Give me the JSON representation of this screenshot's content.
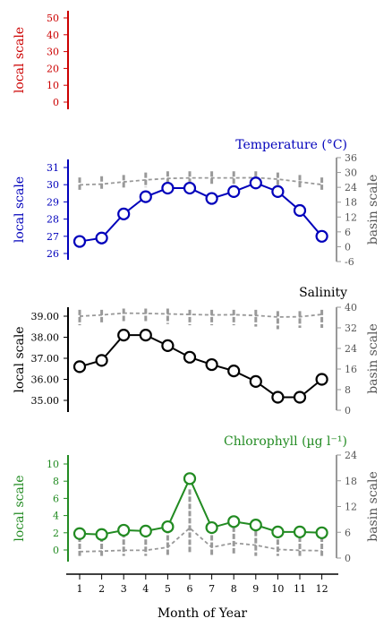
{
  "chart_data": {
    "type": "line",
    "x": [
      1,
      2,
      3,
      4,
      5,
      6,
      7,
      8,
      9,
      10,
      11,
      12
    ],
    "xlabel": "Month of Year",
    "left_axis_label": "local scale",
    "right_axis_label": "basin scale",
    "panels": [
      {
        "id": "empty",
        "title": "",
        "color": "#cc0000",
        "left_ylim": [
          -2,
          55
        ],
        "left_ticks": [
          "50",
          "40",
          "30",
          "20",
          "10",
          "0"
        ],
        "left_tick_values": [
          50,
          40,
          30,
          20,
          10,
          0
        ],
        "local_values": [],
        "right_ylim": null,
        "right_ticks": [],
        "right_tick_values": [],
        "basin_mean": [],
        "basin_ranges": []
      },
      {
        "id": "temperature",
        "title": "Temperature (°C)",
        "color": "#0000bb",
        "left_ylim": [
          25.6,
          31.4
        ],
        "left_ticks": [
          "31",
          "30",
          "29",
          "28",
          "27",
          "26"
        ],
        "left_tick_values": [
          31,
          30,
          29,
          28,
          27,
          26
        ],
        "local_values": [
          26.7,
          26.9,
          28.3,
          29.3,
          29.8,
          29.8,
          29.2,
          29.6,
          30.1,
          29.6,
          28.5,
          27.0
        ],
        "right_ylim": [
          -7,
          37
        ],
        "right_ticks": [
          "36",
          "30",
          "24",
          "18",
          "12",
          "6",
          "0",
          "-6"
        ],
        "right_tick_values": [
          36,
          30,
          24,
          18,
          12,
          6,
          0,
          -6
        ],
        "basin_mean": [
          25.0,
          25.3,
          26.2,
          27.0,
          27.6,
          27.8,
          27.8,
          27.8,
          27.9,
          27.3,
          26.2,
          25.1
        ],
        "basin_ranges": [
          [
            23.0,
            28.0
          ],
          [
            23.0,
            28.5
          ],
          [
            23.5,
            29.0
          ],
          [
            24.0,
            30.0
          ],
          [
            24.5,
            30.5
          ],
          [
            25.0,
            30.5
          ],
          [
            25.0,
            30.5
          ],
          [
            25.0,
            30.5
          ],
          [
            25.0,
            30.5
          ],
          [
            24.5,
            30.0
          ],
          [
            24.0,
            29.0
          ],
          [
            23.0,
            28.0
          ]
        ]
      },
      {
        "id": "salinity",
        "title": "Salinity",
        "color": "#000000",
        "left_ylim": [
          34.5,
          39.3
        ],
        "left_ticks": [
          "39.00",
          "38.00",
          "37.00",
          "36.00",
          "35.00"
        ],
        "left_tick_values": [
          39,
          38,
          37,
          36,
          35
        ],
        "local_values": [
          36.6,
          36.9,
          38.1,
          38.1,
          37.6,
          37.05,
          36.7,
          36.4,
          35.9,
          35.15,
          35.15,
          36.0
        ],
        "right_ylim": [
          0,
          40
        ],
        "right_ticks": [
          "40",
          "32",
          "24",
          "16",
          "8",
          "0"
        ],
        "right_tick_values": [
          40,
          32,
          24,
          16,
          8,
          0
        ],
        "basin_mean": [
          36.5,
          37.0,
          37.7,
          37.6,
          37.4,
          37.2,
          37.0,
          37.1,
          36.8,
          36.2,
          36.3,
          37.2
        ],
        "basin_ranges": [
          [
            33.0,
            39.0
          ],
          [
            33.5,
            39.0
          ],
          [
            34.0,
            39.5
          ],
          [
            34.0,
            39.5
          ],
          [
            33.5,
            39.5
          ],
          [
            33.0,
            39.0
          ],
          [
            33.0,
            39.0
          ],
          [
            33.0,
            39.0
          ],
          [
            32.5,
            39.0
          ],
          [
            31.5,
            38.5
          ],
          [
            32.0,
            38.5
          ],
          [
            32.0,
            39.0
          ]
        ]
      },
      {
        "id": "chlorophyll",
        "title": "Chlorophyll (µg l⁻¹)",
        "color": "#228b22",
        "left_ylim": [
          -1,
          11
        ],
        "left_ticks": [
          "10",
          "8",
          "6",
          "4",
          "2",
          "0"
        ],
        "left_tick_values": [
          10,
          8,
          6,
          4,
          2,
          0
        ],
        "local_values": [
          1.9,
          1.8,
          2.3,
          2.2,
          2.7,
          8.3,
          2.6,
          3.3,
          2.9,
          2.1,
          2.1,
          2.0
        ],
        "right_ylim": [
          0,
          24
        ],
        "right_ticks": [
          "24",
          "18",
          "12",
          "6",
          "0"
        ],
        "right_tick_values": [
          24,
          18,
          12,
          6,
          0
        ],
        "basin_mean": [
          1.5,
          1.6,
          1.8,
          1.8,
          2.5,
          7.0,
          2.5,
          3.5,
          3.0,
          2.0,
          1.8,
          1.7
        ],
        "basin_ranges": [
          [
            0.5,
            5.0
          ],
          [
            0.5,
            5.0
          ],
          [
            0.5,
            6.0
          ],
          [
            0.5,
            6.0
          ],
          [
            0.5,
            7.0
          ],
          [
            1.0,
            16.0
          ],
          [
            0.5,
            7.0
          ],
          [
            1.0,
            9.0
          ],
          [
            0.5,
            8.0
          ],
          [
            0.5,
            6.0
          ],
          [
            0.5,
            5.0
          ],
          [
            0.5,
            5.0
          ]
        ]
      }
    ]
  }
}
